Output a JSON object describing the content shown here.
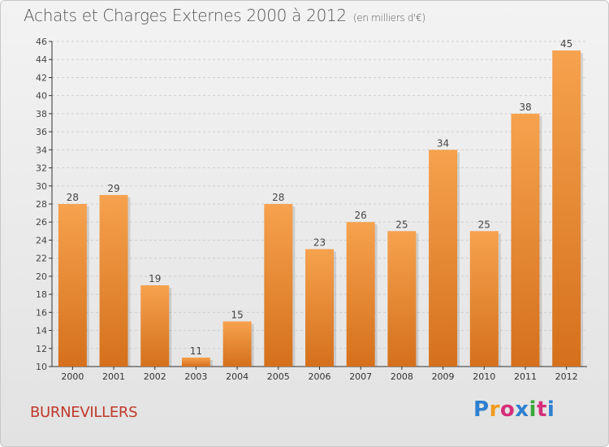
{
  "header": {
    "title": "Achats et Charges Externes 2000 à 2012",
    "subtitle": "(en milliers d'€)"
  },
  "footer": {
    "commune": "BURNEVILLERS",
    "logo_letters": [
      "P",
      "r",
      "o",
      "x",
      "i",
      "t",
      "i"
    ],
    "logo_colors": [
      "#2e7fd0",
      "#f39a1e",
      "#d62f7a",
      "#2e7fd0",
      "#3aa83a",
      "#d62f7a",
      "#2e7fd0"
    ]
  },
  "colors": {
    "bar_light": "#f6a24e",
    "bar_dark": "#d5701c",
    "grid": "#cfcfcf",
    "axis": "#333333"
  },
  "chart_data": {
    "type": "bar",
    "title": "Achats et Charges Externes 2000 à 2012",
    "subtitle": "(en milliers d'€)",
    "categories": [
      "2000",
      "2001",
      "2002",
      "2003",
      "2004",
      "2005",
      "2006",
      "2007",
      "2008",
      "2009",
      "2010",
      "2011",
      "2012"
    ],
    "values": [
      28,
      29,
      19,
      11,
      15,
      28,
      23,
      26,
      25,
      34,
      25,
      38,
      45
    ],
    "ylim": [
      10,
      46
    ],
    "yticks": [
      10,
      12,
      14,
      16,
      18,
      20,
      22,
      24,
      26,
      28,
      30,
      32,
      34,
      36,
      38,
      40,
      42,
      44,
      46
    ],
    "grid": true,
    "xlabel": "",
    "ylabel": ""
  }
}
